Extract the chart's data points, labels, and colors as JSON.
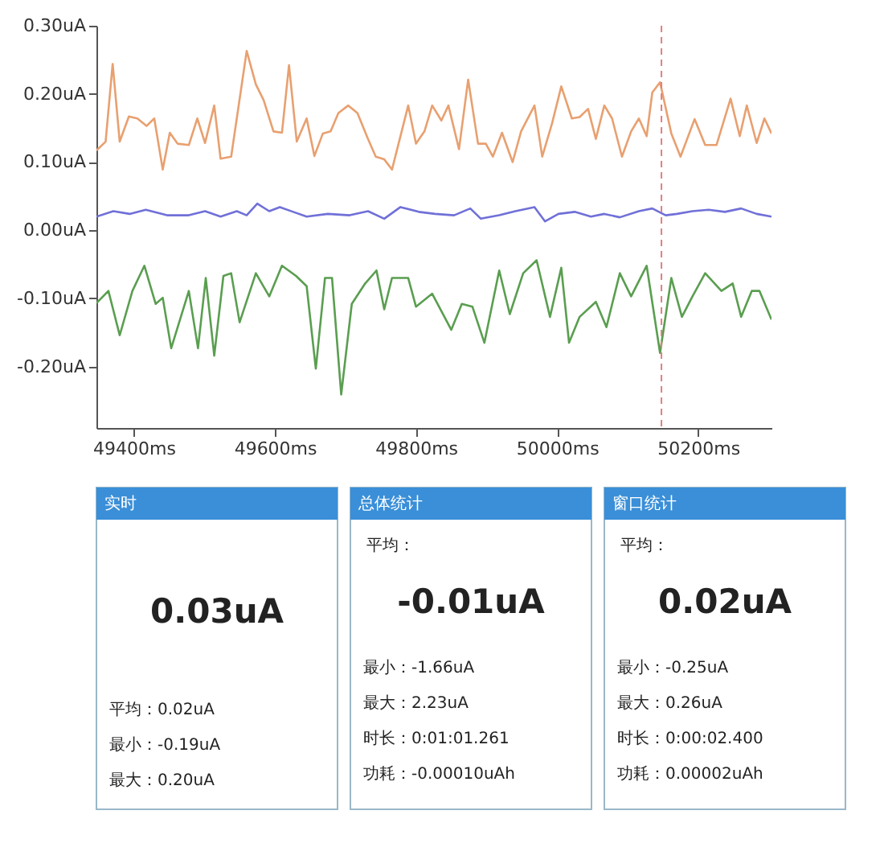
{
  "chart_data": [
    {
      "type": "line",
      "xlim": [
        49347,
        50304
      ],
      "ylim": [
        -0.29,
        0.3
      ],
      "xticks": [
        {
          "value": 49400,
          "label": "49400ms"
        },
        {
          "value": 49600,
          "label": "49600ms"
        },
        {
          "value": 49800,
          "label": "49800ms"
        },
        {
          "value": 50000,
          "label": "50000ms"
        },
        {
          "value": 50200,
          "label": "50200ms"
        }
      ],
      "yticks": [
        {
          "value": 0.3,
          "label": "0.30uA"
        },
        {
          "value": 0.2,
          "label": "0.20uA"
        },
        {
          "value": 0.1,
          "label": "0.10uA"
        },
        {
          "value": 0.0,
          "label": "0.00uA"
        },
        {
          "value": -0.1,
          "label": "-0.10uA"
        },
        {
          "value": -0.2,
          "label": "-0.20uA"
        }
      ],
      "grid": false,
      "ref_lines": [
        {
          "axis": "x",
          "value": 50148,
          "color": "#e08080",
          "line_style": "dashed"
        }
      ],
      "series": [
        {
          "color": "#e8a070",
          "x": [
            49347,
            49360,
            49370,
            49380,
            49393,
            49405,
            49418,
            49429,
            49441,
            49451,
            49462,
            49478,
            49490,
            49501,
            49514,
            49523,
            49538,
            49560,
            49573,
            49584,
            49598,
            49610,
            49620,
            49631,
            49645,
            49656,
            49668,
            49679,
            49690,
            49704,
            49717,
            49732,
            49743,
            49755,
            49766,
            49789,
            49800,
            49812,
            49823,
            49836,
            49846,
            49861,
            49874,
            49888,
            49899,
            49909,
            49922,
            49937,
            49949,
            49968,
            49979,
            49993,
            50006,
            50021,
            50032,
            50044,
            50055,
            50067,
            50078,
            50092,
            50105,
            50116,
            50127,
            50135,
            50146,
            50162,
            50175,
            50195,
            50210,
            50226,
            50246,
            50259,
            50269,
            50283,
            50294,
            50304
          ],
          "values": [
            0.117,
            0.13,
            0.244,
            0.13,
            0.167,
            0.164,
            0.153,
            0.164,
            0.089,
            0.143,
            0.127,
            0.125,
            0.164,
            0.128,
            0.183,
            0.105,
            0.108,
            0.263,
            0.214,
            0.191,
            0.145,
            0.143,
            0.242,
            0.13,
            0.164,
            0.109,
            0.142,
            0.145,
            0.172,
            0.183,
            0.172,
            0.134,
            0.108,
            0.104,
            0.089,
            0.183,
            0.127,
            0.145,
            0.183,
            0.161,
            0.183,
            0.119,
            0.221,
            0.127,
            0.127,
            0.108,
            0.143,
            0.1,
            0.145,
            0.183,
            0.108,
            0.157,
            0.211,
            0.164,
            0.166,
            0.178,
            0.134,
            0.183,
            0.164,
            0.108,
            0.145,
            0.164,
            0.138,
            0.202,
            0.217,
            0.142,
            0.108,
            0.163,
            0.125,
            0.125,
            0.193,
            0.138,
            0.183,
            0.128,
            0.164,
            0.142
          ]
        },
        {
          "color": "#7070d8",
          "x": [
            49347,
            49371,
            49394,
            49417,
            49447,
            49478,
            49501,
            49523,
            49546,
            49560,
            49575,
            49592,
            49607,
            49626,
            49645,
            49675,
            49706,
            49732,
            49755,
            49778,
            49804,
            49827,
            49854,
            49877,
            49892,
            49918,
            49941,
            49968,
            49983,
            50002,
            50025,
            50048,
            50067,
            50089,
            50116,
            50135,
            50154,
            50170,
            50192,
            50215,
            50238,
            50261,
            50283,
            50304
          ],
          "values": [
            0.02,
            0.028,
            0.024,
            0.03,
            0.022,
            0.022,
            0.028,
            0.02,
            0.028,
            0.022,
            0.039,
            0.028,
            0.034,
            0.027,
            0.02,
            0.024,
            0.022,
            0.028,
            0.017,
            0.034,
            0.027,
            0.024,
            0.022,
            0.032,
            0.017,
            0.022,
            0.028,
            0.034,
            0.013,
            0.024,
            0.027,
            0.02,
            0.024,
            0.019,
            0.028,
            0.032,
            0.022,
            0.024,
            0.028,
            0.03,
            0.027,
            0.032,
            0.024,
            0.02
          ]
        },
        {
          "color": "#5a9e50",
          "x": [
            49347,
            49364,
            49380,
            49398,
            49415,
            49431,
            49441,
            49453,
            49478,
            49491,
            49502,
            49514,
            49527,
            49538,
            49550,
            49573,
            49592,
            49610,
            49630,
            49645,
            49658,
            49671,
            49681,
            49694,
            49709,
            49728,
            49744,
            49755,
            49766,
            49789,
            49800,
            49823,
            49850,
            49865,
            49880,
            49897,
            49918,
            49933,
            49952,
            49971,
            49990,
            50006,
            50017,
            50032,
            50055,
            50070,
            50089,
            50105,
            50127,
            50146,
            50162,
            50177,
            50192,
            50210,
            50233,
            50249,
            50261,
            50276,
            50287,
            50304
          ],
          "values": [
            -0.107,
            -0.089,
            -0.154,
            -0.089,
            -0.052,
            -0.108,
            -0.099,
            -0.173,
            -0.089,
            -0.173,
            -0.07,
            -0.184,
            -0.067,
            -0.063,
            -0.135,
            -0.063,
            -0.097,
            -0.052,
            -0.067,
            -0.082,
            -0.203,
            -0.07,
            -0.07,
            -0.241,
            -0.108,
            -0.078,
            -0.059,
            -0.116,
            -0.07,
            -0.07,
            -0.112,
            -0.093,
            -0.146,
            -0.108,
            -0.112,
            -0.165,
            -0.059,
            -0.123,
            -0.063,
            -0.044,
            -0.127,
            -0.055,
            -0.165,
            -0.127,
            -0.105,
            -0.142,
            -0.063,
            -0.097,
            -0.052,
            -0.18,
            -0.07,
            -0.127,
            -0.097,
            -0.063,
            -0.089,
            -0.078,
            -0.127,
            -0.089,
            -0.089,
            -0.131
          ]
        }
      ]
    },
    {
      "type": "other",
      "title": "实时",
      "subtitle": "0.03uA",
      "annotations": [
        "平均：0.02uA",
        "最小：-0.19uA",
        "最大：0.20uA"
      ]
    },
    {
      "type": "other",
      "title": "总体统计",
      "ylabel": "平均：",
      "subtitle": "-0.01uA",
      "annotations": [
        "最小：-1.66uA",
        "最大：2.23uA",
        "时长：0:01:01.261",
        "功耗：-0.00010uAh"
      ]
    },
    {
      "type": "other",
      "title": "窗口统计",
      "ylabel": "平均：",
      "subtitle": "0.02uA",
      "annotations": [
        "最小：-0.25uA",
        "最大：0.26uA",
        "时长：0:00:02.400",
        "功耗：0.00002uAh"
      ]
    }
  ]
}
